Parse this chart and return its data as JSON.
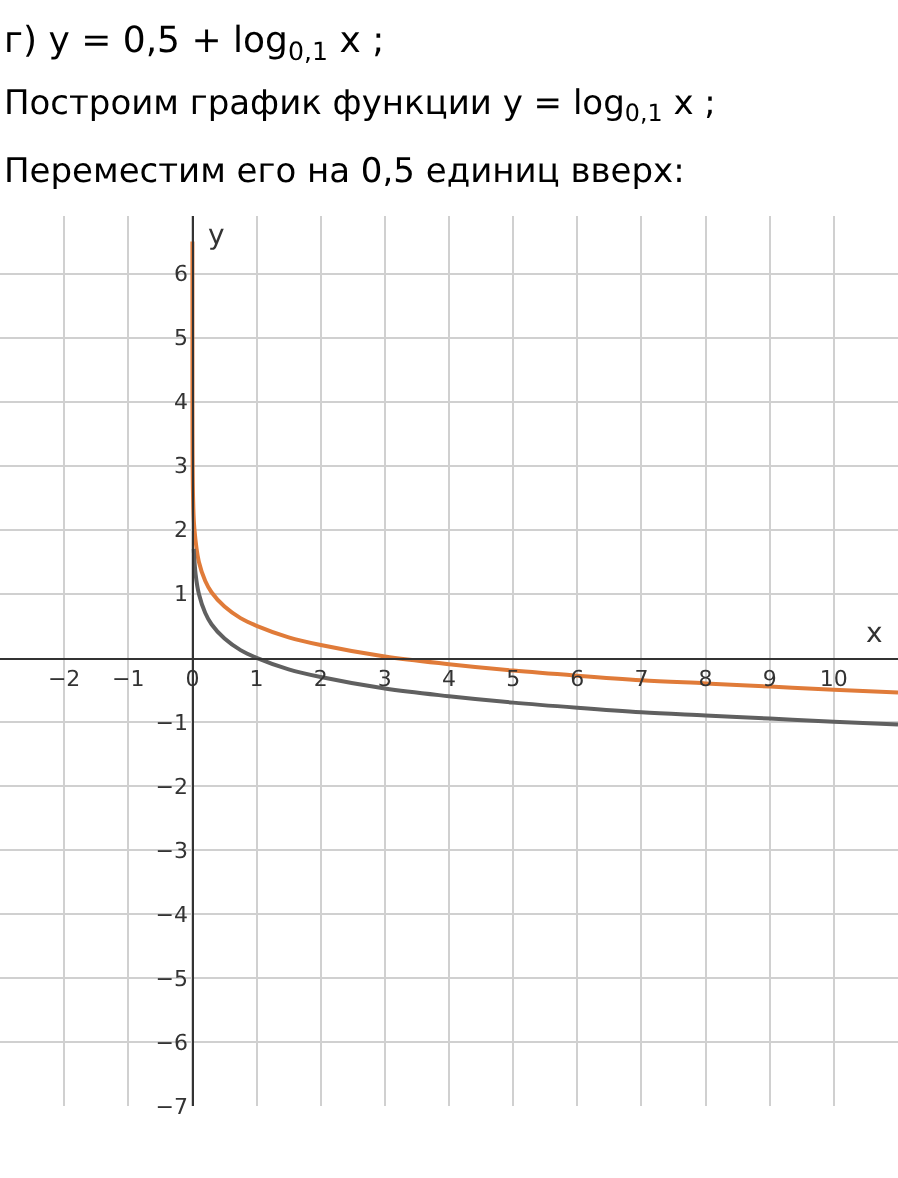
{
  "chart_data": {
    "type": "line",
    "title": "г) y = 0,5 + log$_{0,1}$ x ;",
    "subtitle": "Построим график функции y = log$_{0,1}$ x ;",
    "annotations": [
      "Переместим его на 0,5 единиц вверх:"
    ],
    "xlabel": "x",
    "ylabel": "y",
    "series": [
      {
        "color": "#e07b39",
        "x": [
          1e-06,
          1e-05,
          0.0001,
          0.001,
          0.01,
          0.03,
          0.1,
          0.2,
          0.3,
          0.5,
          0.75,
          1,
          1.5,
          2,
          3,
          4,
          5,
          6,
          7,
          8,
          9,
          10,
          11
        ],
        "values": [
          6.5,
          5.5,
          4.5,
          3.5,
          2.5,
          2.02,
          1.5,
          1.2,
          1.02,
          0.8,
          0.62,
          0.5,
          0.32,
          0.2,
          0.02,
          -0.1,
          -0.2,
          -0.28,
          -0.35,
          -0.4,
          -0.45,
          -0.5,
          -0.54
        ]
      },
      {
        "color": "#606060",
        "x": [
          0.02,
          0.05,
          0.1,
          0.2,
          0.3,
          0.5,
          0.75,
          1,
          1.5,
          2,
          3,
          4,
          5,
          6,
          7,
          8,
          9,
          10,
          11
        ],
        "values": [
          1.7,
          1.3,
          1.0,
          0.7,
          0.52,
          0.3,
          0.12,
          0,
          -0.18,
          -0.3,
          -0.48,
          -0.6,
          -0.7,
          -0.78,
          -0.85,
          -0.9,
          -0.95,
          -1,
          -1.04
        ]
      }
    ],
    "xlim": [
      -3,
      11
    ],
    "ylim": [
      -7,
      6.9
    ],
    "xticks": [
      -2,
      -1,
      0,
      1,
      2,
      3,
      4,
      5,
      6,
      7,
      8,
      9,
      10
    ],
    "yticks": [
      -7,
      -6,
      -5,
      -4,
      -3,
      -2,
      -1,
      1,
      2,
      3,
      4,
      5,
      6
    ],
    "grid": true,
    "marker": "none",
    "line_style": "solid"
  }
}
